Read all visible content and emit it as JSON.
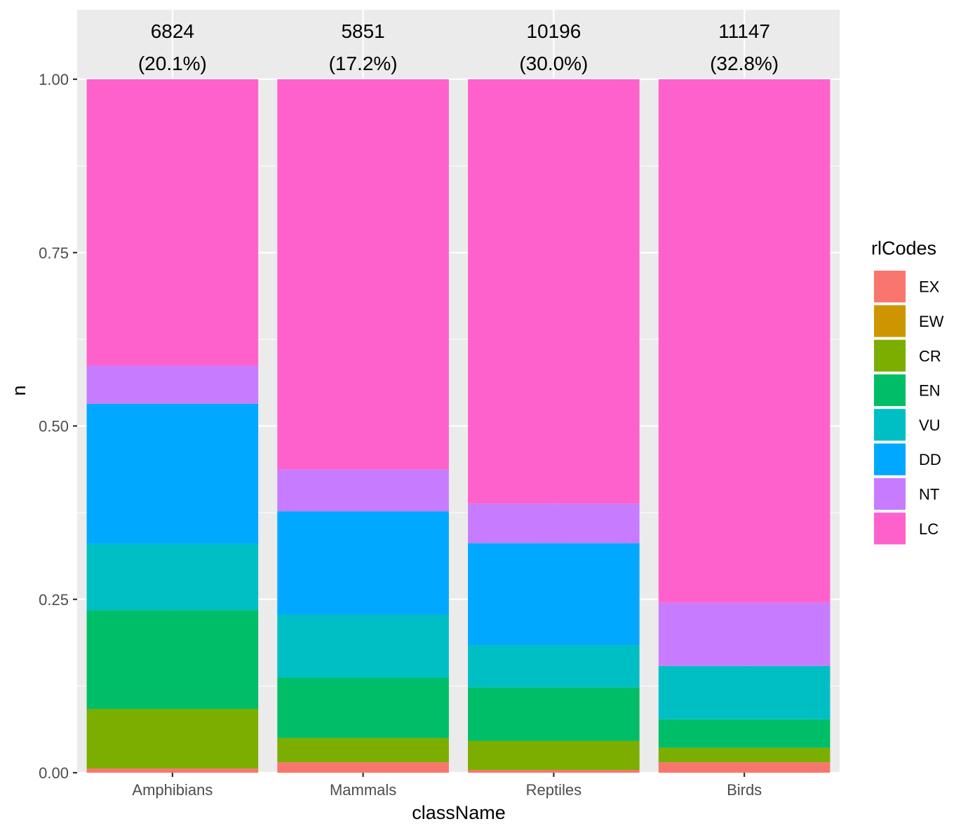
{
  "chart_data": {
    "type": "bar",
    "stacked": true,
    "normalized": true,
    "title": "",
    "xlabel": "className",
    "ylabel": "n",
    "ylim": [
      0,
      1
    ],
    "yticks": [
      0.0,
      0.25,
      0.5,
      0.75,
      1.0
    ],
    "ytick_labels": [
      "0.00",
      "0.25",
      "0.50",
      "0.75",
      "1.00"
    ],
    "categories": [
      "Amphibians",
      "Mammals",
      "Reptiles",
      "Birds"
    ],
    "totals": [
      "6824",
      "5851",
      "10196",
      "11147"
    ],
    "percents": [
      "(20.1%)",
      "(17.2%)",
      "(30.0%)",
      "(32.8%)"
    ],
    "legend": {
      "title": "rlCodes",
      "position": "right"
    },
    "series": [
      {
        "name": "EX",
        "color": "#F8766D",
        "values": [
          0.006,
          0.015,
          0.004,
          0.015
        ]
      },
      {
        "name": "EW",
        "color": "#CD9600",
        "values": [
          0.0,
          0.0,
          0.0,
          0.0
        ]
      },
      {
        "name": "CR",
        "color": "#7CAE00",
        "values": [
          0.086,
          0.035,
          0.042,
          0.021
        ]
      },
      {
        "name": "EN",
        "color": "#00BE67",
        "values": [
          0.142,
          0.087,
          0.077,
          0.041
        ]
      },
      {
        "name": "VU",
        "color": "#00BFC4",
        "values": [
          0.096,
          0.091,
          0.061,
          0.077
        ]
      },
      {
        "name": "DD",
        "color": "#00A9FF",
        "values": [
          0.202,
          0.149,
          0.147,
          0.0
        ]
      },
      {
        "name": "NT",
        "color": "#C77CFF",
        "values": [
          0.055,
          0.06,
          0.057,
          0.091
        ]
      },
      {
        "name": "LC",
        "color": "#FF61CC",
        "values": [
          0.413,
          0.563,
          0.612,
          0.755
        ]
      }
    ]
  }
}
